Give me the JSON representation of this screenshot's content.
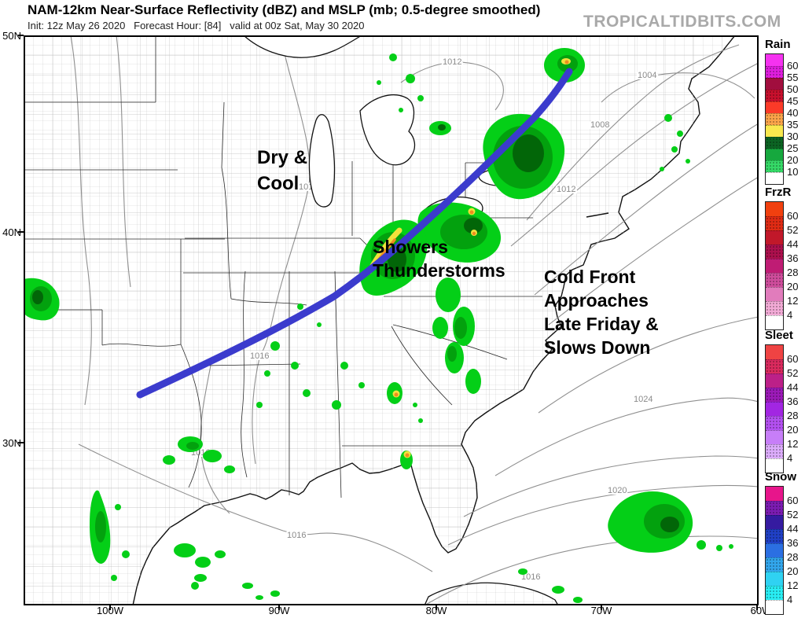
{
  "header": {
    "title": "NAM-12km Near-Surface Reflectivity (dBZ) and MSLP (mb; 0.5-degree smoothed)",
    "subtitle": "Init: 12z May 26 2020   Forecast Hour: [84]   valid at 00z Sat, May 30 2020",
    "watermark": "TROPICALTIDBITS.COM"
  },
  "axes": {
    "lat": [
      {
        "label": "50N"
      },
      {
        "label": "40N"
      },
      {
        "label": "30N"
      }
    ],
    "lon": [
      {
        "label": "100W"
      },
      {
        "label": "90W"
      },
      {
        "label": "80W"
      },
      {
        "label": "70W"
      },
      {
        "label": "60W"
      }
    ]
  },
  "annotations": {
    "dry_cool": {
      "line1": "Dry &",
      "line2": "Cool"
    },
    "showers": {
      "line1": "Showers",
      "line2": "Thunderstorms"
    },
    "cold_front": {
      "line1": "Cold Front",
      "line2": "Approaches",
      "line3": "Late Friday &",
      "line4": "Slows Down"
    }
  },
  "front": {
    "description": "cold front line",
    "color": "#3b3bcd"
  },
  "contour_labels": [
    {
      "text": "1012"
    },
    {
      "text": "1004"
    },
    {
      "text": "1008"
    },
    {
      "text": "1012"
    },
    {
      "text": "1016"
    },
    {
      "text": "1016"
    },
    {
      "text": "1016"
    },
    {
      "text": "1024"
    },
    {
      "text": "1020"
    },
    {
      "text": "1016"
    },
    {
      "text": "1016"
    }
  ],
  "radar_colors": {
    "light_green": "#04cf17",
    "mid_green": "#03a10e",
    "dark_green": "#026608",
    "yellow": "#f2e13c",
    "orange": "#f08c1e"
  },
  "legends": [
    {
      "title": "Rain",
      "tick_labels": [
        "60",
        "55",
        "50",
        "45",
        "40",
        "35",
        "30",
        "25",
        "20",
        "10"
      ],
      "colors": [
        "#f532f0",
        "#df1ede",
        "#a10e3e",
        "#c8102d",
        "#fb3a28",
        "#fba44a",
        "#f9e84e",
        "#0c6423",
        "#16a83e",
        "#35d967",
        "#ffffff"
      ]
    },
    {
      "title": "FrzR",
      "tick_labels": [
        "60",
        "52",
        "44",
        "36",
        "28",
        "20",
        "12",
        "4"
      ],
      "colors": [
        "#f1400f",
        "#df2b14",
        "#c1182a",
        "#ac104d",
        "#bf1c74",
        "#cf4d9c",
        "#e17cbc",
        "#f2abd6",
        "#ffffff"
      ]
    },
    {
      "title": "Sleet",
      "tick_labels": [
        "60",
        "52",
        "44",
        "36",
        "28",
        "20",
        "12",
        "4"
      ],
      "colors": [
        "#ef4343",
        "#da2a5e",
        "#bc2088",
        "#9c1ab8",
        "#a226e2",
        "#b450f1",
        "#c77ef8",
        "#dcacfb",
        "#ffffff"
      ]
    },
    {
      "title": "Snow",
      "tick_labels": [
        "60",
        "52",
        "44",
        "36",
        "28",
        "20",
        "12",
        "4"
      ],
      "colors": [
        "#e7158b",
        "#7c1cb2",
        "#351ba0",
        "#2040c6",
        "#2b6fe2",
        "#32a6ec",
        "#2fd2f2",
        "#29eef4",
        "#ffffff"
      ]
    }
  ]
}
